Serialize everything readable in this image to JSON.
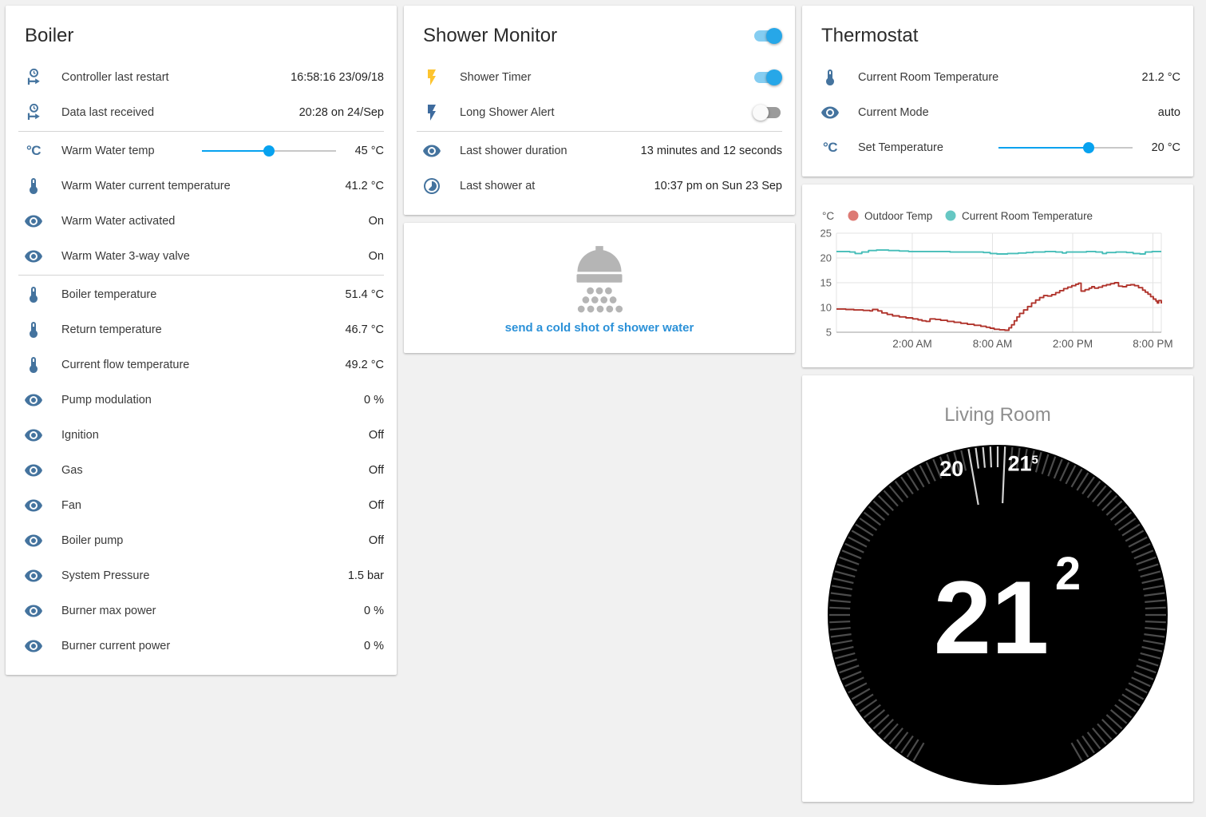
{
  "cards": {
    "boiler": {
      "title": "Boiler",
      "rows": [
        {
          "icon": "clock-start",
          "label": "Controller last restart",
          "value": "16:58:16 23/09/18"
        },
        {
          "icon": "clock-start",
          "label": "Data last received",
          "value": "20:28 on 24/Sep",
          "divider_after": true
        },
        {
          "icon": "temperature-celsius",
          "label": "Warm Water temp",
          "control": "slider",
          "percent": 50,
          "value": "45 °C"
        },
        {
          "icon": "thermometer",
          "label": "Warm Water current temperature",
          "value": "41.2 °C"
        },
        {
          "icon": "eye",
          "label": "Warm Water activated",
          "value": "On"
        },
        {
          "icon": "eye",
          "label": "Warm Water 3-way valve",
          "value": "On",
          "divider_after": true
        },
        {
          "icon": "thermometer",
          "label": "Boiler temperature",
          "value": "51.4 °C"
        },
        {
          "icon": "thermometer",
          "label": "Return temperature",
          "value": "46.7 °C"
        },
        {
          "icon": "thermometer",
          "label": "Current flow temperature",
          "value": "49.2 °C"
        },
        {
          "icon": "eye",
          "label": "Pump modulation",
          "value": "0 %"
        },
        {
          "icon": "eye",
          "label": "Ignition",
          "value": "Off"
        },
        {
          "icon": "eye",
          "label": "Gas",
          "value": "Off"
        },
        {
          "icon": "eye",
          "label": "Fan",
          "value": "Off"
        },
        {
          "icon": "eye",
          "label": "Boiler pump",
          "value": "Off"
        },
        {
          "icon": "eye",
          "label": "System Pressure",
          "value": "1.5 bar"
        },
        {
          "icon": "eye",
          "label": "Burner max power",
          "value": "0 %"
        },
        {
          "icon": "eye",
          "label": "Burner current power",
          "value": "0 %"
        }
      ]
    },
    "shower_monitor": {
      "title": "Shower Monitor",
      "title_toggle_state": "on",
      "rows": [
        {
          "icon": "flash",
          "icon_color": "#fdc42f",
          "label": "Shower Timer",
          "control": "toggle",
          "state": "on"
        },
        {
          "icon": "flash",
          "icon_color": "#3e6b9e",
          "label": "Long Shower Alert",
          "control": "toggle",
          "state": "off",
          "divider_after": true
        },
        {
          "icon": "eye",
          "label": "Last shower duration",
          "value": "13 minutes and 12 seconds"
        },
        {
          "icon": "timelapse",
          "label": "Last shower at",
          "value": "10:37 pm on Sun 23 Sep"
        }
      ]
    },
    "cold_shot": {
      "link_label": "send a cold shot of shower water"
    },
    "thermostat": {
      "title": "Thermostat",
      "rows": [
        {
          "icon": "thermometer",
          "label": "Current Room Temperature",
          "value": "21.2 °C"
        },
        {
          "icon": "eye",
          "label": "Current Mode",
          "value": "auto"
        },
        {
          "icon": "temperature-celsius",
          "label": "Set Temperature",
          "control": "slider",
          "percent": 67,
          "value": "20 °C"
        }
      ]
    },
    "dial": {
      "room": "Living Room",
      "label_left": {
        "text": "20",
        "sup": ""
      },
      "label_right": {
        "text": "21",
        "sup": "5"
      },
      "big": "21",
      "big_sup": "2",
      "bg_color": "#000000",
      "tick_dim_color": "#4b4b4b",
      "tick_bright_color": "#d2d2d2"
    }
  },
  "chart_data": {
    "type": "line",
    "step": true,
    "unit": "°C",
    "x_range": [
      0,
      24.3
    ],
    "x_ticks": [
      {
        "t": 5.67,
        "label": "2:00 AM"
      },
      {
        "t": 11.67,
        "label": "8:00 AM"
      },
      {
        "t": 17.67,
        "label": "2:00 PM"
      },
      {
        "t": 23.67,
        "label": "8:00 PM"
      }
    ],
    "y_ticks": [
      25,
      20,
      15,
      10,
      5
    ],
    "ylim": [
      5,
      25
    ],
    "grid": true,
    "legend_position": "top",
    "series": [
      {
        "name": "Outdoor Temp",
        "color": "#b0342c",
        "dot_color": "#dd7a74",
        "points": [
          [
            0,
            9.7
          ],
          [
            0.7,
            9.6
          ],
          [
            1.3,
            9.5
          ],
          [
            2.0,
            9.4
          ],
          [
            2.5,
            9.3
          ],
          [
            2.7,
            9.6
          ],
          [
            3.1,
            9.3
          ],
          [
            3.4,
            8.9
          ],
          [
            3.8,
            8.6
          ],
          [
            4.2,
            8.3
          ],
          [
            4.7,
            8.1
          ],
          [
            5.2,
            7.9
          ],
          [
            5.7,
            7.7
          ],
          [
            6.1,
            7.5
          ],
          [
            6.4,
            7.3
          ],
          [
            6.7,
            7.2
          ],
          [
            7.0,
            7.7
          ],
          [
            7.4,
            7.6
          ],
          [
            7.8,
            7.4
          ],
          [
            8.3,
            7.2
          ],
          [
            8.8,
            7.0
          ],
          [
            9.3,
            6.8
          ],
          [
            9.8,
            6.6
          ],
          [
            10.3,
            6.4
          ],
          [
            10.8,
            6.2
          ],
          [
            11.2,
            6.0
          ],
          [
            11.5,
            5.8
          ],
          [
            11.8,
            5.6
          ],
          [
            12.2,
            5.5
          ],
          [
            12.6,
            5.4
          ],
          [
            12.9,
            5.9
          ],
          [
            13.1,
            6.5
          ],
          [
            13.3,
            7.3
          ],
          [
            13.5,
            8.1
          ],
          [
            13.7,
            8.8
          ],
          [
            14.0,
            9.5
          ],
          [
            14.3,
            10.2
          ],
          [
            14.6,
            10.9
          ],
          [
            14.9,
            11.5
          ],
          [
            15.2,
            12.0
          ],
          [
            15.5,
            12.4
          ],
          [
            15.8,
            12.3
          ],
          [
            16.1,
            12.6
          ],
          [
            16.4,
            13.0
          ],
          [
            16.7,
            13.4
          ],
          [
            17.0,
            13.8
          ],
          [
            17.3,
            14.1
          ],
          [
            17.6,
            14.4
          ],
          [
            17.9,
            14.7
          ],
          [
            18.1,
            14.9
          ],
          [
            18.3,
            13.3
          ],
          [
            18.6,
            13.6
          ],
          [
            18.9,
            13.9
          ],
          [
            19.1,
            14.2
          ],
          [
            19.3,
            13.9
          ],
          [
            19.6,
            14.1
          ],
          [
            19.9,
            14.4
          ],
          [
            20.2,
            14.6
          ],
          [
            20.5,
            14.8
          ],
          [
            20.8,
            15.0
          ],
          [
            21.1,
            14.3
          ],
          [
            21.4,
            14.2
          ],
          [
            21.7,
            14.5
          ],
          [
            22.0,
            14.6
          ],
          [
            22.3,
            14.4
          ],
          [
            22.6,
            14.0
          ],
          [
            22.9,
            13.5
          ],
          [
            23.1,
            13.1
          ],
          [
            23.3,
            12.7
          ],
          [
            23.5,
            12.2
          ],
          [
            23.7,
            11.7
          ],
          [
            23.9,
            11.3
          ],
          [
            24.0,
            10.9
          ],
          [
            24.1,
            11.4
          ],
          [
            24.3,
            10.8
          ]
        ]
      },
      {
        "name": "Current Room Temperature",
        "color": "#45bdb8",
        "dot_color": "#66c7c3",
        "points": [
          [
            0,
            21.3
          ],
          [
            1.0,
            21.2
          ],
          [
            1.4,
            20.9
          ],
          [
            1.9,
            21.2
          ],
          [
            2.4,
            21.5
          ],
          [
            3.0,
            21.6
          ],
          [
            3.9,
            21.5
          ],
          [
            4.7,
            21.4
          ],
          [
            5.4,
            21.3
          ],
          [
            7.0,
            21.3
          ],
          [
            8.5,
            21.2
          ],
          [
            10.0,
            21.2
          ],
          [
            11.0,
            21.1
          ],
          [
            11.5,
            20.9
          ],
          [
            12.0,
            20.8
          ],
          [
            12.8,
            20.9
          ],
          [
            13.6,
            21.0
          ],
          [
            14.2,
            21.1
          ],
          [
            14.7,
            21.2
          ],
          [
            15.6,
            21.3
          ],
          [
            16.4,
            21.2
          ],
          [
            16.9,
            21.0
          ],
          [
            17.2,
            21.2
          ],
          [
            18.0,
            21.2
          ],
          [
            18.7,
            21.3
          ],
          [
            19.4,
            21.2
          ],
          [
            19.9,
            20.9
          ],
          [
            20.2,
            21.1
          ],
          [
            20.9,
            21.2
          ],
          [
            21.7,
            21.1
          ],
          [
            22.2,
            20.9
          ],
          [
            22.7,
            20.8
          ],
          [
            23.1,
            21.2
          ],
          [
            23.6,
            21.3
          ],
          [
            24.3,
            21.3
          ]
        ]
      }
    ]
  }
}
